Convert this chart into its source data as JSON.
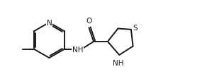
{
  "bg_color": "#ffffff",
  "line_color": "#1a1a1a",
  "text_color": "#1a1a1a",
  "line_width": 1.4,
  "font_size": 7.5,
  "figsize": [
    2.92,
    1.16
  ],
  "dpi": 100,
  "xlim": [
    -0.5,
    10.5
  ],
  "ylim": [
    0.0,
    4.0
  ]
}
